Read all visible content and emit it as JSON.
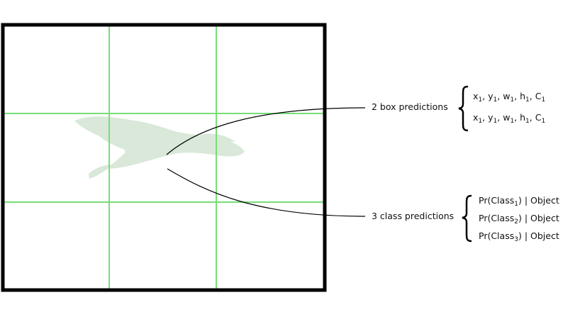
{
  "box_label": "2 box predictions",
  "class_label": "3 class predictions",
  "box_rows": [
    {
      "x": "x",
      "y": "y",
      "w": "w",
      "h": "h",
      "c": "C",
      "sub": "1"
    },
    {
      "x": "x",
      "y": "y",
      "w": "w",
      "h": "h",
      "c": "C",
      "sub": "1"
    }
  ],
  "class_rows": [
    {
      "prefix": "Pr(Class",
      "sub": "1",
      "suffix": ") | Object"
    },
    {
      "prefix": "Pr(Class",
      "sub": "2",
      "suffix": ") | Object"
    },
    {
      "prefix": "Pr(Class",
      "sub": "3",
      "suffix": ") | Object"
    }
  ],
  "colors": {
    "frame": "#000000",
    "grid": "#77dd77",
    "bird": "#d9e8d9",
    "connector": "#000000"
  },
  "grid": {
    "rows": 3,
    "cols": 3
  }
}
